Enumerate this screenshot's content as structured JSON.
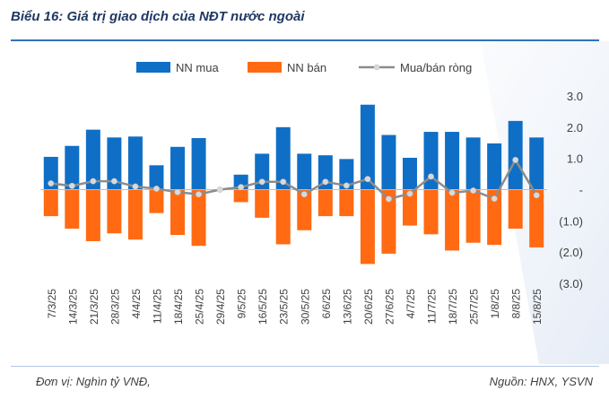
{
  "title": "Biểu 16: Giá trị giao dịch của NĐT nước ngoài",
  "footer": {
    "unit": "Đơn vị: Nghìn tỷ VNĐ,",
    "source": "Nguồn: HNX, YSVN"
  },
  "colors": {
    "buy": "#0f6fc6",
    "sell": "#ff6a13",
    "net": "#8c8c8c",
    "net_marker": "#d9d9d9"
  },
  "chart_data": {
    "type": "bar",
    "title": "Biểu 16: Giá trị giao dịch của NĐT nước ngoài",
    "legend": [
      "NN mua",
      "NN bán",
      "Mua/bán ròng"
    ],
    "legend_position": "top",
    "ylim": [
      -3.0,
      3.0
    ],
    "yticks": [
      3.0,
      2.0,
      1.0,
      0,
      -1.0,
      -2.0,
      -3.0
    ],
    "ytick_labels": [
      "3.0",
      "2.0",
      "1.0",
      "-",
      "(1.0)",
      "(2.0)",
      "(3.0)"
    ],
    "categories": [
      "7/3/25",
      "14/3/25",
      "21/3/25",
      "28/3/25",
      "4/4/25",
      "11/4/25",
      "18/4/25",
      "25/4/25",
      "29/4/25",
      "9/5/25",
      "16/5/25",
      "23/5/25",
      "30/5/25",
      "6/6/25",
      "13/6/25",
      "20/6/25",
      "27/6/25",
      "4/7/25",
      "11/7/25",
      "18/7/25",
      "25/7/25",
      "1/8/25",
      "8/8/25",
      "15/8/25"
    ],
    "series": [
      {
        "name": "NN mua",
        "type": "bar",
        "values": [
          1.05,
          1.4,
          1.92,
          1.67,
          1.7,
          0.78,
          1.37,
          1.65,
          0,
          0.48,
          1.15,
          2.0,
          1.15,
          1.1,
          0.98,
          2.72,
          1.75,
          1.02,
          1.85,
          1.85,
          1.67,
          1.48,
          2.2,
          1.67
        ]
      },
      {
        "name": "NN bán",
        "type": "bar",
        "values": [
          -0.85,
          -1.25,
          -1.65,
          -1.4,
          -1.6,
          -0.75,
          -1.45,
          -1.8,
          0,
          -0.4,
          -0.9,
          -1.75,
          -1.3,
          -0.85,
          -0.85,
          -2.38,
          -2.05,
          -1.15,
          -1.43,
          -1.95,
          -1.7,
          -1.77,
          -1.25,
          -1.85
        ]
      },
      {
        "name": "Mua/bán ròng",
        "type": "line",
        "values": [
          0.2,
          0.12,
          0.27,
          0.27,
          0.1,
          0.03,
          -0.08,
          -0.15,
          0,
          0.08,
          0.25,
          0.25,
          -0.15,
          0.25,
          0.13,
          0.34,
          -0.3,
          -0.13,
          0.42,
          -0.1,
          -0.03,
          -0.29,
          0.95,
          -0.18
        ]
      }
    ]
  }
}
